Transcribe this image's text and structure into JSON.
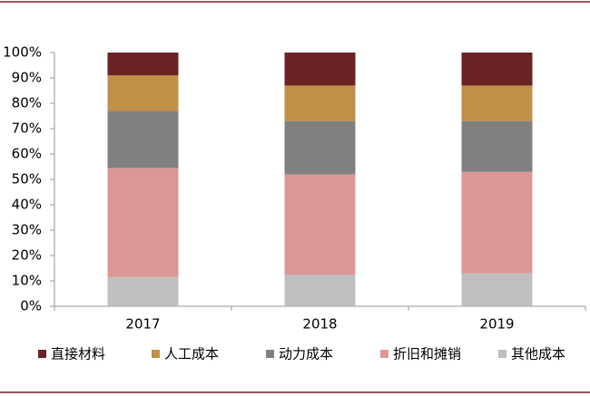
{
  "chart_data": {
    "type": "stacked_bar",
    "categories": [
      "2017",
      "2018",
      "2019"
    ],
    "series": [
      {
        "name": "直接材料",
        "color": "#6b2224",
        "values": [
          9,
          13,
          13
        ]
      },
      {
        "name": "人工成本",
        "color": "#c09048",
        "values": [
          14,
          14,
          14
        ]
      },
      {
        "name": "动力成本",
        "color": "#808080",
        "values": [
          22.5,
          21,
          20
        ]
      },
      {
        "name": "折旧和摊销",
        "color": "#dc9795",
        "values": [
          43,
          39.5,
          40
        ]
      },
      {
        "name": "其他成本",
        "color": "#bfbfbf",
        "values": [
          11.5,
          12.5,
          13
        ]
      }
    ],
    "ylim": [
      0,
      100
    ],
    "yticks": [
      {
        "value": 0,
        "label": "0%"
      },
      {
        "value": 10,
        "label": "10%"
      },
      {
        "value": 20,
        "label": "20%"
      },
      {
        "value": 30,
        "label": "30%"
      },
      {
        "value": 40,
        "label": "40%"
      },
      {
        "value": 50,
        "label": "50%"
      },
      {
        "value": 60,
        "label": "60%"
      },
      {
        "value": 70,
        "label": "70%"
      },
      {
        "value": 80,
        "label": "80%"
      },
      {
        "value": 90,
        "label": "90%"
      },
      {
        "value": 100,
        "label": "100%"
      }
    ],
    "legend": "bottom"
  }
}
